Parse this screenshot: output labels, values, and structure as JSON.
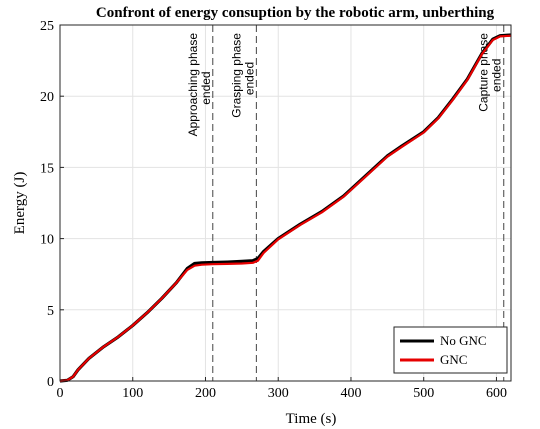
{
  "chart_data": {
    "type": "line",
    "title": "Confront of energy consuption by the robotic arm, unberthing",
    "xlabel": "Time (s)",
    "ylabel": "Energy (J)",
    "xlim": [
      0,
      620
    ],
    "ylim": [
      0,
      25
    ],
    "xticks": [
      0,
      100,
      200,
      300,
      400,
      500,
      600
    ],
    "yticks": [
      0,
      5,
      10,
      15,
      20,
      25
    ],
    "grid": true,
    "legend_position": "bottom-right",
    "series": [
      {
        "name": "No GNC",
        "color": "#000000",
        "x": [
          0,
          10,
          18,
          25,
          40,
          60,
          80,
          100,
          120,
          140,
          160,
          175,
          185,
          195,
          210,
          230,
          250,
          265,
          272,
          280,
          300,
          330,
          360,
          390,
          420,
          450,
          470,
          500,
          520,
          540,
          560,
          580,
          595,
          605,
          620
        ],
        "y": [
          0,
          0.05,
          0.3,
          0.8,
          1.6,
          2.4,
          3.1,
          3.9,
          4.8,
          5.8,
          6.9,
          7.9,
          8.25,
          8.3,
          8.32,
          8.35,
          8.4,
          8.45,
          8.6,
          9.1,
          10.0,
          11.0,
          11.9,
          13.0,
          14.4,
          15.8,
          16.5,
          17.5,
          18.5,
          19.8,
          21.2,
          23.0,
          24.0,
          24.25,
          24.3
        ]
      },
      {
        "name": "GNC",
        "color": "#e60000",
        "x": [
          0,
          10,
          18,
          25,
          40,
          60,
          80,
          100,
          120,
          140,
          160,
          175,
          185,
          195,
          210,
          230,
          250,
          265,
          272,
          280,
          300,
          330,
          360,
          390,
          420,
          450,
          470,
          500,
          520,
          540,
          560,
          580,
          595,
          605,
          620
        ],
        "y": [
          0,
          0.05,
          0.3,
          0.8,
          1.6,
          2.4,
          3.1,
          3.9,
          4.8,
          5.8,
          6.9,
          7.8,
          8.1,
          8.17,
          8.2,
          8.22,
          8.25,
          8.3,
          8.45,
          9.0,
          9.95,
          10.95,
          11.85,
          12.95,
          14.35,
          15.75,
          16.45,
          17.45,
          18.45,
          19.75,
          21.15,
          22.95,
          23.95,
          24.2,
          24.25
        ]
      }
    ],
    "vlines": [
      {
        "x": 210,
        "label_line1": "Approaching phase",
        "label_line2": "ended"
      },
      {
        "x": 270,
        "label_line1": "Grasping phase",
        "label_line2": "ended"
      },
      {
        "x": 610,
        "label_line1": "Capture phase",
        "label_line2": "ended"
      }
    ]
  }
}
